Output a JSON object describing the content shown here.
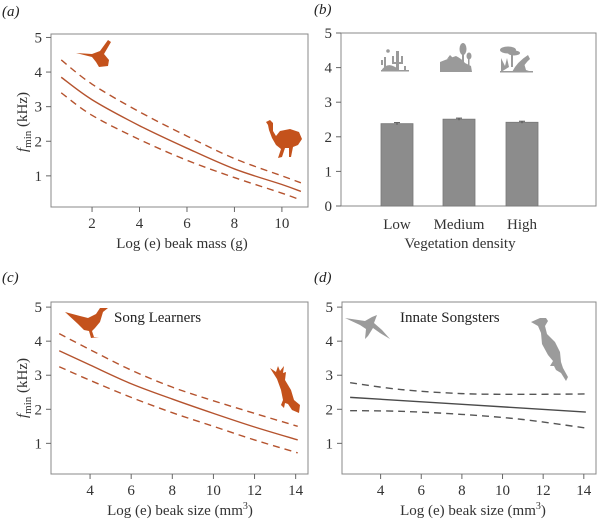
{
  "figure": {
    "colors": {
      "learner": "#b5532e",
      "learner_icon": "#c4521c",
      "innate": "#4a4a4a",
      "innate_dashed": "#555555",
      "bar": "#8c8c8c",
      "habitat_icon": "#9a9a9a"
    }
  },
  "chart_data": [
    {
      "id": "a",
      "panel_label": "(a)",
      "type": "line",
      "title": "",
      "xlabel": "Log (e) beak mass (g)",
      "ylabel_main": "f",
      "ylabel_sub": "min",
      "ylabel_unit": " (kHz)",
      "xlim": [
        0.27,
        11.1
      ],
      "ylim": [
        0.1,
        5.1
      ],
      "xticks": [
        2,
        4,
        6,
        8,
        10
      ],
      "yticks": [
        1,
        2,
        3,
        4,
        5
      ],
      "annotation": "",
      "icons": [
        "hummingbird-icon",
        "emu-icon"
      ],
      "series": [
        {
          "name": "fit",
          "style": "solid",
          "x": [
            0.7,
            2,
            4,
            6,
            8,
            10,
            10.8
          ],
          "y": [
            3.85,
            3.2,
            2.45,
            1.8,
            1.2,
            0.75,
            0.55
          ]
        },
        {
          "name": "upper CI",
          "style": "dashed",
          "x": [
            0.7,
            2,
            4,
            6,
            8,
            10,
            10.8
          ],
          "y": [
            4.35,
            3.65,
            2.85,
            2.15,
            1.5,
            1.0,
            0.8
          ]
        },
        {
          "name": "lower CI",
          "style": "dashed",
          "x": [
            0.7,
            2,
            4,
            6,
            8,
            10,
            10.8
          ],
          "y": [
            3.4,
            2.75,
            2.05,
            1.45,
            0.95,
            0.5,
            0.3
          ]
        }
      ]
    },
    {
      "id": "b",
      "panel_label": "(b)",
      "type": "bar",
      "title": "",
      "xlabel": "Vegetation density",
      "ylabel_main": "",
      "ylim": [
        0,
        5
      ],
      "yticks": [
        0,
        1,
        2,
        3,
        4,
        5
      ],
      "categories": [
        "Low",
        "Medium",
        "High"
      ],
      "values": [
        2.38,
        2.51,
        2.42
      ],
      "errors": [
        0.03,
        0.03,
        0.03
      ],
      "icons": [
        "desert-habitat-icon",
        "woodland-habitat-icon",
        "forest-habitat-icon"
      ]
    },
    {
      "id": "c",
      "panel_label": "(c)",
      "type": "line",
      "title": "",
      "xlabel": "Log (e) beak size (mm",
      "xlabel_sup": "3",
      "xlabel_end": ")",
      "ylabel_main": "f",
      "ylabel_sub": "min",
      "ylabel_unit": " (kHz)",
      "xlim": [
        2.1,
        14.6
      ],
      "ylim": [
        0.1,
        5.15
      ],
      "xticks": [
        4,
        6,
        8,
        10,
        12,
        14
      ],
      "yticks": [
        1,
        2,
        3,
        4,
        5
      ],
      "annotation": "Song Learners",
      "icons": [
        "songbird-icon",
        "cockatoo-icon"
      ],
      "series": [
        {
          "name": "fit",
          "style": "solid",
          "x": [
            2.5,
            4,
            6,
            8,
            10,
            12,
            14.1
          ],
          "y": [
            3.72,
            3.3,
            2.75,
            2.3,
            1.88,
            1.48,
            1.1
          ]
        },
        {
          "name": "upper CI",
          "style": "dashed",
          "x": [
            2.5,
            4,
            6,
            8,
            10,
            12,
            14.1
          ],
          "y": [
            4.22,
            3.75,
            3.15,
            2.65,
            2.25,
            1.88,
            1.5
          ]
        },
        {
          "name": "lower CI",
          "style": "dashed",
          "x": [
            2.5,
            4,
            6,
            8,
            10,
            12,
            14.1
          ],
          "y": [
            3.25,
            2.85,
            2.35,
            1.9,
            1.5,
            1.1,
            0.72
          ]
        }
      ]
    },
    {
      "id": "d",
      "panel_label": "(d)",
      "type": "line",
      "title": "",
      "xlabel": "Log (e) beak size (mm",
      "xlabel_sup": "3",
      "xlabel_end": ")",
      "ylabel_main": "",
      "xlim": [
        2.1,
        14.6
      ],
      "ylim": [
        0.1,
        5.15
      ],
      "xticks": [
        4,
        6,
        8,
        10,
        12,
        14
      ],
      "yticks": [
        1,
        2,
        3,
        4,
        5
      ],
      "annotation": "Innate Songsters",
      "icons": [
        "swift-icon",
        "hornbill-icon"
      ],
      "series": [
        {
          "name": "fit",
          "style": "solid",
          "x": [
            2.5,
            14.1
          ],
          "y": [
            2.35,
            1.92
          ]
        },
        {
          "name": "upper CI",
          "style": "dashed",
          "x": [
            2.5,
            5,
            8,
            11,
            14.1
          ],
          "y": [
            2.78,
            2.58,
            2.46,
            2.44,
            2.45
          ]
        },
        {
          "name": "lower CI",
          "style": "dashed",
          "x": [
            2.5,
            5,
            8,
            11,
            14.1
          ],
          "y": [
            1.96,
            1.94,
            1.85,
            1.7,
            1.45
          ]
        }
      ]
    }
  ]
}
